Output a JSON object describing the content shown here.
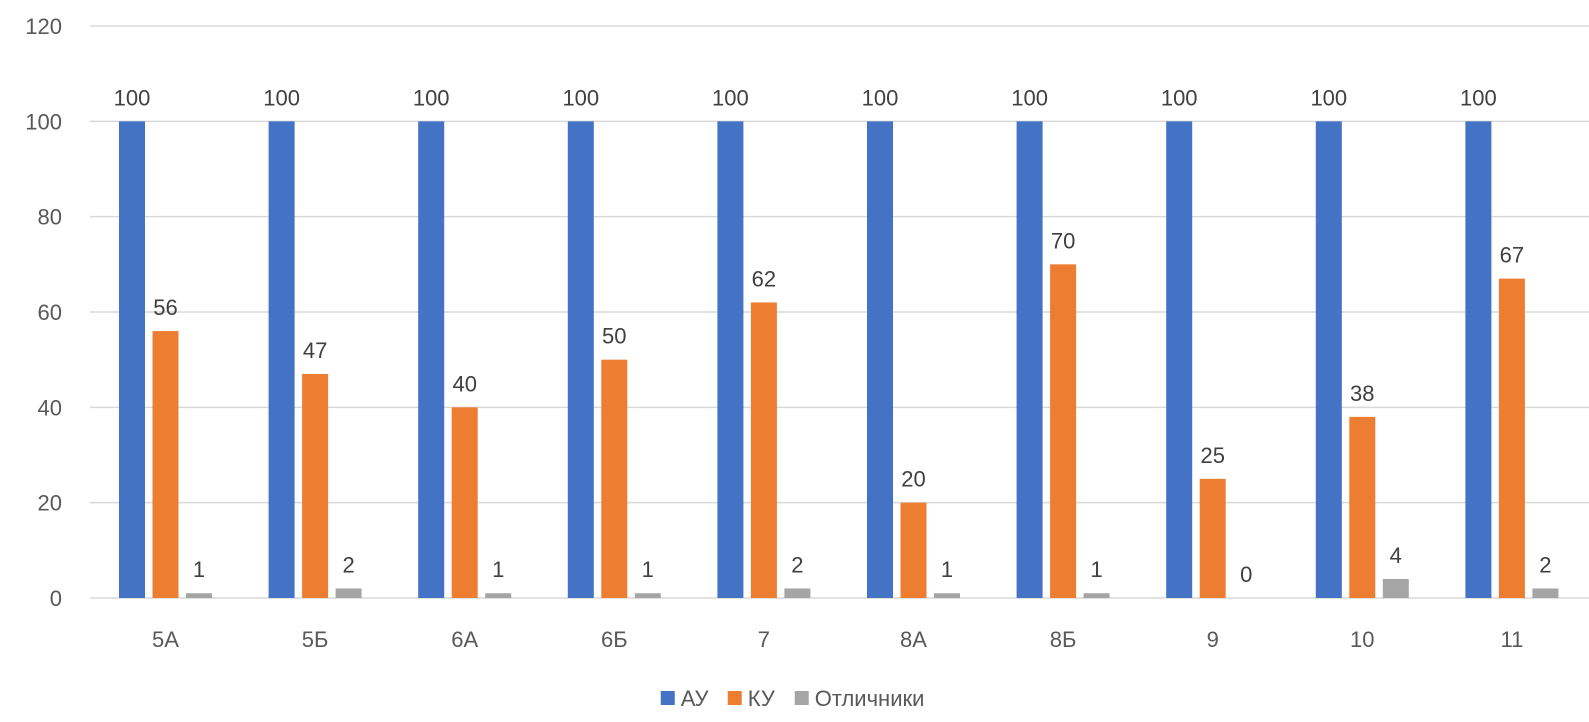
{
  "chart_data": {
    "type": "bar",
    "title": "",
    "xlabel": "",
    "ylabel": "",
    "categories": [
      "5А",
      "5Б",
      "6А",
      "6Б",
      "7",
      "8А",
      "8Б",
      "9",
      "10",
      "11"
    ],
    "series": [
      {
        "name": "АУ",
        "color": "#4472C4",
        "values": [
          100,
          100,
          100,
          100,
          100,
          100,
          100,
          100,
          100,
          100
        ]
      },
      {
        "name": "КУ",
        "color": "#ED7D31",
        "values": [
          56,
          47,
          40,
          50,
          62,
          20,
          70,
          25,
          38,
          67
        ]
      },
      {
        "name": "Отличники",
        "color": "#A5A5A5",
        "values": [
          1,
          2,
          1,
          1,
          2,
          1,
          1,
          0,
          4,
          2
        ]
      }
    ],
    "ylim": [
      0,
      120
    ],
    "yticks": [
      0,
      20,
      40,
      60,
      80,
      100,
      120
    ],
    "grid": true,
    "data_labels": true,
    "legend_position": "bottom"
  }
}
